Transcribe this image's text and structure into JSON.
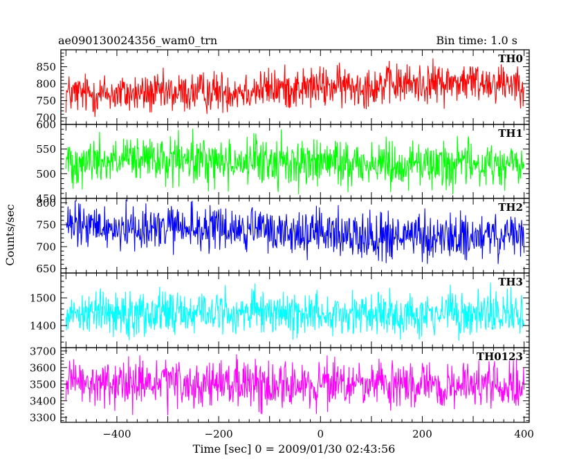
{
  "header": {
    "title": "ae090130024356_wam0_trn",
    "bin_time": "Bin time: 1.0 s"
  },
  "axes": {
    "ylabel": "Counts/sec",
    "xlabel": "Time [sec] 0 = 2009/01/30 02:43:56"
  },
  "colors": {
    "TH0": "#ff0000",
    "TH1": "#00ff00",
    "TH2": "#0000ff",
    "TH3": "#00ffff",
    "TH0123": "#ff00ff"
  },
  "chart_data": {
    "type": "line",
    "title": "ae090130024356_wam0_trn",
    "xlabel": "Time [sec] 0 = 2009/01/30 02:43:56",
    "ylabel": "Counts/sec",
    "xlim": [
      -510,
      410
    ],
    "x_ticks": [
      -400,
      -200,
      0,
      200,
      400
    ],
    "x_tick_labels": [
      "−400",
      "−200",
      "0",
      "200",
      "400"
    ],
    "bin_time_s": 1.0,
    "x_range": [
      -500,
      400
    ],
    "panels": [
      {
        "name": "TH0",
        "color": "#ff0000",
        "ylim": [
          680,
          900
        ],
        "yticks": [
          700,
          750,
          800,
          850
        ],
        "ytick_labels": [
          "700",
          "750",
          "800",
          "850"
        ],
        "trend": [
          [
            -500,
            770
          ],
          [
            -300,
            770
          ],
          [
            -100,
            785
          ],
          [
            100,
            795
          ],
          [
            300,
            805
          ],
          [
            400,
            805
          ]
        ],
        "noise": 30
      },
      {
        "name": "TH1",
        "color": "#00ff00",
        "ylim": [
          450,
          600
        ],
        "yticks": [
          450,
          500,
          550,
          600
        ],
        "ytick_labels": [
          "450",
          "500",
          "550",
          "600"
        ],
        "trend": [
          [
            -500,
            527
          ],
          [
            -200,
            525
          ],
          [
            0,
            522
          ],
          [
            200,
            520
          ],
          [
            400,
            518
          ]
        ],
        "noise": 24
      },
      {
        "name": "TH2",
        "color": "#0000ff",
        "ylim": [
          640,
          810
        ],
        "yticks": [
          650,
          700,
          750,
          800
        ],
        "ytick_labels": [
          "650",
          "700",
          "750",
          "800"
        ],
        "trend": [
          [
            -500,
            745
          ],
          [
            -200,
            740
          ],
          [
            0,
            730
          ],
          [
            200,
            720
          ],
          [
            400,
            722
          ]
        ],
        "noise": 26
      },
      {
        "name": "TH3",
        "color": "#00ffff",
        "ylim": [
          1320,
          1590
        ],
        "yticks": [
          1400,
          1500
        ],
        "ytick_labels": [
          "1400",
          "1500"
        ],
        "trend": [
          [
            -500,
            1450
          ],
          [
            0,
            1445
          ],
          [
            400,
            1440
          ]
        ],
        "noise": 40
      },
      {
        "name": "TH0123",
        "color": "#ff00ff",
        "ylim": [
          3270,
          3720
        ],
        "yticks": [
          3300,
          3400,
          3500,
          3600,
          3700
        ],
        "ytick_labels": [
          "3300",
          "3400",
          "3500",
          "3600",
          "3700"
        ],
        "trend": [
          [
            -500,
            3500
          ],
          [
            0,
            3495
          ],
          [
            400,
            3485
          ]
        ],
        "noise": 70
      }
    ]
  }
}
